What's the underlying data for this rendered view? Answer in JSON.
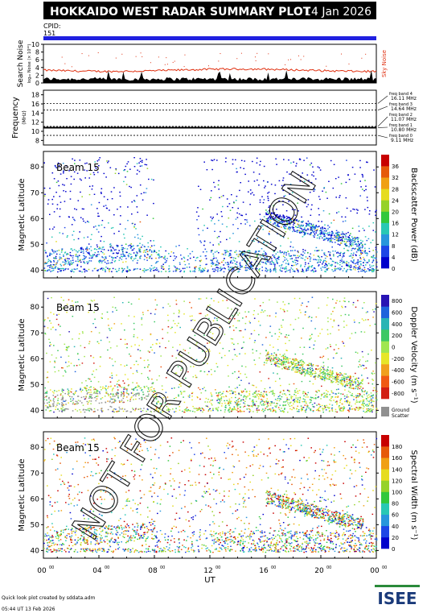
{
  "header": {
    "title": "HOKKAIDO WEST RADAR SUMMARY PLOT",
    "date": "14 Jan 2026"
  },
  "watermark": "NOT FOR PUBLICATION",
  "cpid": {
    "label": "CPID:",
    "value": "151"
  },
  "footer": {
    "credit": "Quick look plot created by sddata.adm",
    "timestamp": "05:44 UT 13 Feb 2026",
    "logo": "ISEE"
  },
  "colors": {
    "cpid_bar": "#2020e0",
    "noise_line": "#e03010",
    "ground_scatter": "#909090"
  },
  "chart_data": [
    {
      "type": "area",
      "panel": "noise",
      "ylabel": "Search Noise",
      "ylabel_sub": "log₁₀ Noise (× 10¹⁰)",
      "ylim": [
        0,
        10
      ],
      "yticks": [
        "0",
        "2",
        "4",
        "6",
        "8",
        "10"
      ],
      "series_label": "Sky Noise",
      "sky_noise_level": 3.3
    },
    {
      "type": "line",
      "panel": "frequency",
      "ylabel": "Frequency",
      "ylabel_sub": "(MHz)",
      "ylim": [
        7,
        19
      ],
      "yticks": [
        "8",
        "10",
        "12",
        "14",
        "16",
        "18"
      ],
      "series": [
        {
          "name": "freq band 4",
          "label": "16.11 MHz",
          "value": 16.11
        },
        {
          "name": "freq band 3",
          "label": "14.64 MHz",
          "value": 14.64
        },
        {
          "name": "freq band 2",
          "label": "11.07 MHz",
          "value": 11.07
        },
        {
          "name": "freq band 1",
          "label": "10.80 MHz",
          "value": 10.8
        },
        {
          "name": "freq band 0",
          "label": "9.11 MHz",
          "value": 9.11
        }
      ]
    },
    {
      "type": "heatmap",
      "panel": "power",
      "beam": "Beam 15",
      "ylabel": "Magnetic Latitude",
      "ylim": [
        37,
        86
      ],
      "yticks": [
        "40",
        "50",
        "60",
        "70",
        "80"
      ],
      "colorbar_label": "Backscatter Power (dB)",
      "colorbar_ticks": [
        "0",
        "4",
        "8",
        "12",
        "16",
        "20",
        "24",
        "28",
        "32",
        "36"
      ],
      "colormap": [
        "#0000cc",
        "#1e46e6",
        "#2896dc",
        "#28c8b4",
        "#32c83c",
        "#96d228",
        "#e6dc1e",
        "#f0a014",
        "#e65a0a",
        "#c80000"
      ]
    },
    {
      "type": "heatmap",
      "panel": "velocity",
      "beam": "Beam 15",
      "ylabel": "Magnetic Latitude",
      "ylim": [
        37,
        86
      ],
      "yticks": [
        "40",
        "50",
        "60",
        "70",
        "80"
      ],
      "colorbar_label": "Doppler Velocity (m s⁻¹)",
      "colorbar_ticks": [
        "-800",
        "-600",
        "-400",
        "-200",
        "0",
        "200",
        "400",
        "600",
        "800"
      ],
      "colormap": [
        "#d21e14",
        "#f05a14",
        "#f0a01e",
        "#e6e628",
        "#a0e650",
        "#3cc864",
        "#28b4b4",
        "#1e64dc",
        "#2814b4"
      ],
      "ground_scatter_label": [
        "Ground",
        "Scatter"
      ]
    },
    {
      "type": "heatmap",
      "panel": "width",
      "beam": "Beam 15",
      "ylabel": "Magnetic Latitude",
      "ylim": [
        37,
        86
      ],
      "yticks": [
        "40",
        "50",
        "60",
        "70",
        "80"
      ],
      "colorbar_label": "Spectral Width (m s⁻¹)",
      "colorbar_ticks": [
        "0",
        "20",
        "40",
        "60",
        "80",
        "100",
        "120",
        "140",
        "160",
        "180"
      ],
      "colormap": [
        "#0000cc",
        "#1e46e6",
        "#2896dc",
        "#28c8b4",
        "#32c83c",
        "#96d228",
        "#e6dc1e",
        "#f0a014",
        "#e65a0a",
        "#c80000"
      ]
    },
    {
      "type": "axis",
      "xlabel": "UT",
      "xlim": [
        0,
        24
      ],
      "xticks": [
        "00",
        "04",
        "08",
        "12",
        "16",
        "20",
        "00"
      ],
      "xtick_sup": "00"
    }
  ]
}
